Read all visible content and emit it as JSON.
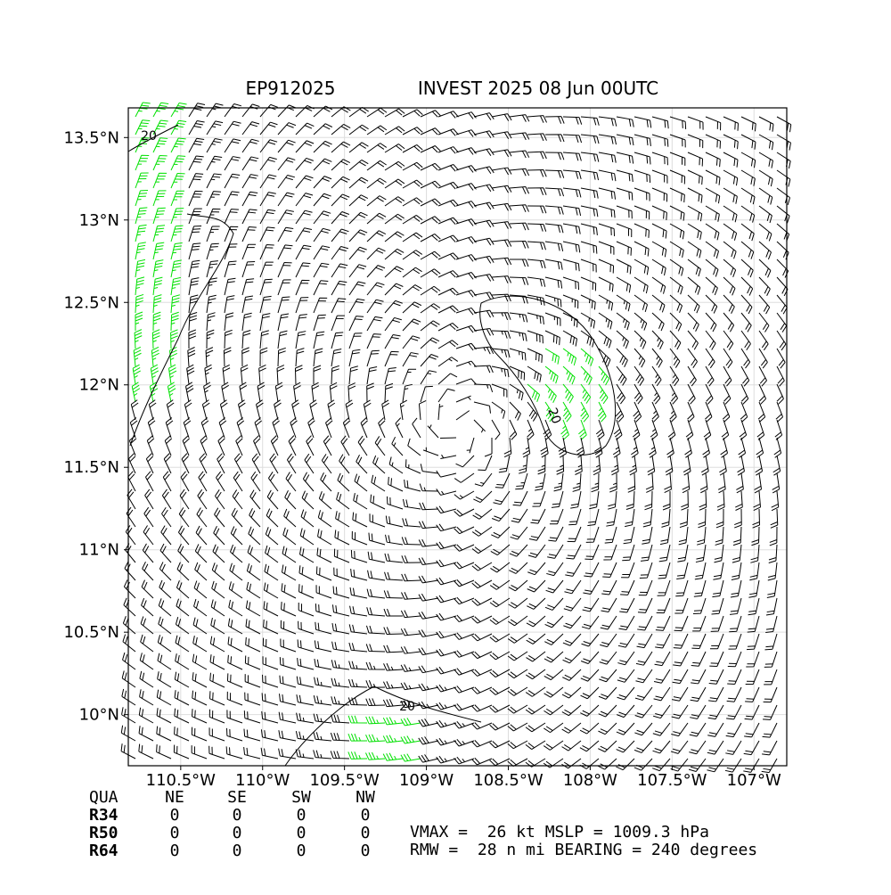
{
  "chart_data": {
    "type": "barb",
    "title_left": "EP912025",
    "title_right": "INVEST 2025 08 Jun 00UTC",
    "xlim": [
      -110.82,
      -106.8
    ],
    "ylim": [
      9.69,
      13.68
    ],
    "xticks": [
      {
        "value": -110.5,
        "label": "110.5°W"
      },
      {
        "value": -110,
        "label": "110°W"
      },
      {
        "value": -109.5,
        "label": "109.5°W"
      },
      {
        "value": -109,
        "label": "109°W"
      },
      {
        "value": -108.5,
        "label": "108.5°W"
      },
      {
        "value": -108,
        "label": "108°W"
      },
      {
        "value": -107.5,
        "label": "107.5°W"
      },
      {
        "value": -107,
        "label": "107°W"
      }
    ],
    "yticks": [
      {
        "value": 10,
        "label": "10°N"
      },
      {
        "value": 10.5,
        "label": "10.5°N"
      },
      {
        "value": 11,
        "label": "11°N"
      },
      {
        "value": 11.5,
        "label": "11.5°N"
      },
      {
        "value": 12,
        "label": "12°N"
      },
      {
        "value": 12.5,
        "label": "12.5°N"
      },
      {
        "value": 13,
        "label": "13°N"
      },
      {
        "value": 13.5,
        "label": "13.5°N"
      }
    ],
    "grid": true,
    "contour_labels": [
      "20",
      "20",
      "20"
    ],
    "table": {
      "header": [
        "QUA",
        "NE",
        "SE",
        "SW",
        "NW"
      ],
      "rows": [
        [
          "R34",
          "0",
          "0",
          "0",
          "0"
        ],
        [
          "R50",
          "0",
          "0",
          "0",
          "0"
        ],
        [
          "R64",
          "0",
          "0",
          "0",
          "0"
        ]
      ]
    },
    "info": [
      "VMAX =  26 kt MSLP = 1009.3 hPa",
      "RMW =  28 n mi BEARING = 240 degrees"
    ]
  }
}
